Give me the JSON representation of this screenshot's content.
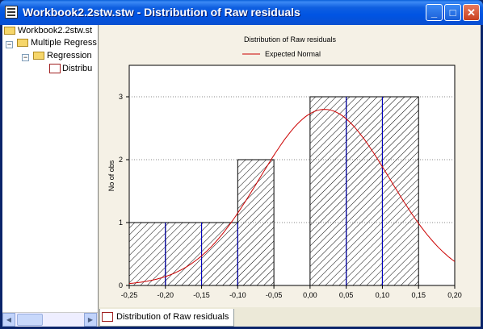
{
  "window": {
    "title": "Workbook2.2stw.stw - Distribution of Raw residuals"
  },
  "titlebar_buttons": {
    "minimize": "_",
    "maximize": "□",
    "close": "✕"
  },
  "tree": {
    "items": [
      {
        "label": "Workbook2.2stw.st"
      },
      {
        "label": "Multiple Regress"
      },
      {
        "label": "Regression"
      },
      {
        "label": "Distribu"
      }
    ]
  },
  "tabs": [
    {
      "label": "Distribution of Raw residuals"
    }
  ],
  "chart_data": {
    "type": "bar",
    "title": "Distribution of Raw residuals",
    "legend": [
      {
        "name": "Expected Normal",
        "color": "#cc0000"
      }
    ],
    "legend_position": "top-center",
    "xlabel": "",
    "ylabel": "No of obs",
    "xlim": [
      -0.25,
      0.2
    ],
    "ylim": [
      0,
      3.5
    ],
    "x_ticks": [
      "-0,25",
      "-0,20",
      "-0,15",
      "-0,10",
      "-0,05",
      "0,00",
      "0,05",
      "0,10",
      "0,15",
      "0,20"
    ],
    "y_ticks": [
      "0",
      "1",
      "2",
      "3"
    ],
    "bins": [
      {
        "from": -0.25,
        "to": -0.2,
        "value": 1
      },
      {
        "from": -0.2,
        "to": -0.15,
        "value": 1
      },
      {
        "from": -0.15,
        "to": -0.1,
        "value": 1
      },
      {
        "from": -0.1,
        "to": -0.05,
        "value": 2
      },
      {
        "from": -0.05,
        "to": 0.0,
        "value": 0
      },
      {
        "from": 0.0,
        "to": 0.05,
        "value": 3
      },
      {
        "from": 0.05,
        "to": 0.1,
        "value": 3
      },
      {
        "from": 0.1,
        "to": 0.15,
        "value": 3
      }
    ],
    "normal_curve": {
      "mean": 0.02,
      "peak": 2.8,
      "sd": 0.09
    },
    "grid": true,
    "bar_fill": "diagonal hatch",
    "colors": {
      "bar_edge": "#000000",
      "divider": "#0000cc",
      "curve": "#cc0000",
      "gridline": "#888888"
    }
  }
}
